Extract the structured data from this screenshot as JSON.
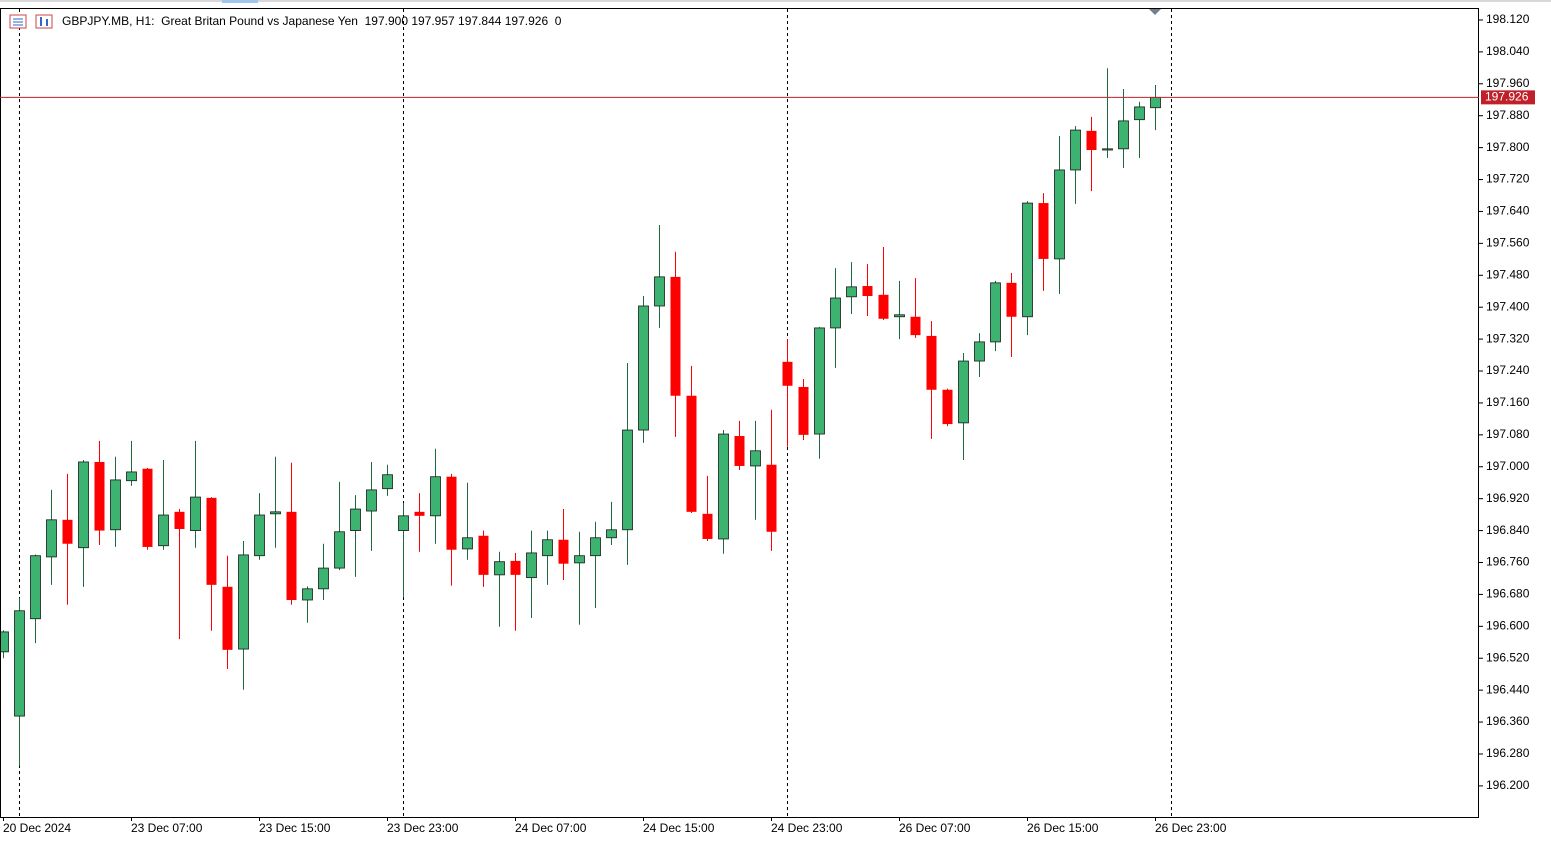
{
  "chart_data": {
    "type": "candlestick",
    "title": "GBPJPY.MB, H1:  Great Britan Pound vs Japanese Yen  197.900 197.957 197.844 197.926  0",
    "categories": [
      "20 Dec 2024",
      null,
      null,
      null,
      null,
      null,
      null,
      null,
      "23 Dec 07:00",
      null,
      null,
      null,
      null,
      null,
      null,
      null,
      "23 Dec 15:00",
      null,
      null,
      null,
      null,
      null,
      null,
      null,
      "23 Dec 23:00",
      null,
      null,
      null,
      null,
      null,
      null,
      null,
      "24 Dec 07:00",
      null,
      null,
      null,
      null,
      null,
      null,
      null,
      "24 Dec 15:00",
      null,
      null,
      null,
      null,
      null,
      null,
      null,
      "24 Dec 23:00",
      null,
      null,
      null,
      null,
      null,
      null,
      null,
      "26 Dec 07:00",
      null,
      null,
      null,
      null,
      null,
      null,
      null,
      "26 Dec 15:00",
      null,
      null,
      null,
      null,
      null,
      null,
      null,
      "26 Dec 23:00"
    ],
    "open": [
      196.536,
      196.375,
      196.619,
      196.774,
      196.867,
      196.797,
      197.012,
      196.842,
      196.965,
      196.995,
      196.802,
      196.887,
      196.84,
      196.922,
      196.699,
      196.543,
      196.777,
      196.882,
      196.887,
      196.666,
      196.694,
      196.746,
      196.84,
      196.889,
      196.945,
      196.84,
      196.887,
      196.877,
      196.975,
      196.794,
      196.827,
      196.729,
      196.764,
      196.722,
      196.777,
      196.817,
      196.759,
      196.777,
      196.822,
      196.842,
      197.092,
      197.403,
      197.476,
      197.178,
      196.882,
      196.819,
      197.077,
      197.002,
      197.005,
      197.263,
      197.2,
      197.082,
      197.348,
      197.426,
      197.453,
      197.431,
      197.376,
      197.376,
      197.328,
      197.193,
      197.11,
      197.265,
      197.313,
      197.461,
      197.376,
      197.661,
      197.521,
      197.744,
      197.842,
      197.794,
      197.797,
      197.87,
      197.9
    ],
    "high": [
      196.59,
      196.671,
      196.78,
      196.942,
      196.982,
      197.017,
      197.065,
      197.025,
      197.065,
      196.997,
      197.017,
      196.894,
      197.065,
      196.924,
      196.777,
      196.814,
      196.934,
      197.025,
      197.01,
      196.7,
      196.807,
      196.962,
      196.929,
      197.012,
      197.005,
      196.909,
      196.934,
      197.045,
      196.982,
      196.96,
      196.84,
      196.787,
      196.784,
      196.84,
      196.84,
      196.894,
      196.837,
      196.862,
      196.912,
      197.26,
      197.428,
      197.606,
      197.539,
      197.253,
      196.977,
      197.092,
      197.115,
      197.115,
      197.143,
      197.32,
      197.22,
      197.35,
      197.498,
      197.513,
      197.508,
      197.551,
      197.466,
      197.473,
      197.365,
      197.196,
      197.285,
      197.335,
      197.466,
      197.486,
      197.666,
      197.686,
      197.829,
      197.854,
      197.877,
      197.999,
      197.947,
      197.915,
      197.957
    ],
    "low": [
      196.52,
      196.25,
      196.558,
      196.704,
      196.654,
      196.699,
      196.804,
      196.799,
      196.952,
      196.792,
      196.792,
      196.568,
      196.797,
      196.589,
      196.493,
      196.441,
      196.767,
      196.797,
      196.654,
      196.609,
      196.666,
      196.741,
      196.724,
      196.789,
      196.927,
      196.674,
      196.787,
      196.807,
      196.702,
      196.767,
      196.699,
      196.599,
      196.589,
      196.621,
      196.704,
      196.716,
      196.604,
      196.646,
      196.804,
      196.754,
      197.06,
      197.348,
      197.075,
      196.884,
      196.814,
      196.782,
      196.992,
      196.867,
      196.789,
      197.05,
      197.067,
      197.02,
      197.248,
      197.383,
      197.378,
      197.368,
      197.32,
      197.323,
      197.07,
      197.102,
      197.017,
      197.225,
      197.29,
      197.275,
      197.33,
      197.441,
      197.433,
      197.659,
      197.691,
      197.774,
      197.749,
      197.774,
      197.844
    ],
    "close": [
      196.586,
      196.639,
      196.777,
      196.867,
      196.807,
      197.012,
      196.84,
      196.967,
      196.987,
      196.799,
      196.879,
      196.844,
      196.924,
      196.704,
      196.541,
      196.779,
      196.879,
      196.887,
      196.666,
      196.694,
      196.746,
      196.837,
      196.894,
      196.942,
      196.98,
      196.877,
      196.877,
      196.975,
      196.792,
      196.822,
      196.729,
      196.762,
      196.729,
      196.784,
      196.817,
      196.757,
      196.777,
      196.822,
      196.842,
      197.092,
      197.403,
      197.476,
      197.178,
      196.887,
      196.819,
      197.082,
      197.002,
      197.04,
      196.837,
      197.203,
      197.08,
      197.348,
      197.423,
      197.451,
      197.428,
      197.371,
      197.381,
      197.33,
      197.193,
      197.107,
      197.265,
      197.313,
      197.461,
      197.376,
      197.661,
      197.521,
      197.744,
      197.844,
      197.794,
      197.797,
      197.867,
      197.902,
      197.926
    ],
    "up_color": "#3cb371",
    "down_color": "#ff0000",
    "price_line": {
      "value": 197.926,
      "label": "197.926",
      "color": "#c0202a"
    },
    "ylim": [
      196.122,
      198.15
    ],
    "yticks": [
      {
        "value": 198.12,
        "label": "198.120"
      },
      {
        "value": 198.04,
        "label": "198.040"
      },
      {
        "value": 197.96,
        "label": "197.960"
      },
      {
        "value": 197.88,
        "label": "197.880"
      },
      {
        "value": 197.8,
        "label": "197.800"
      },
      {
        "value": 197.72,
        "label": "197.720"
      },
      {
        "value": 197.64,
        "label": "197.640"
      },
      {
        "value": 197.56,
        "label": "197.560"
      },
      {
        "value": 197.48,
        "label": "197.480"
      },
      {
        "value": 197.4,
        "label": "197.400"
      },
      {
        "value": 197.32,
        "label": "197.320"
      },
      {
        "value": 197.24,
        "label": "197.240"
      },
      {
        "value": 197.16,
        "label": "197.160"
      },
      {
        "value": 197.08,
        "label": "197.080"
      },
      {
        "value": 197,
        "label": "197.000"
      },
      {
        "value": 196.92,
        "label": "196.920"
      },
      {
        "value": 196.84,
        "label": "196.840"
      },
      {
        "value": 196.76,
        "label": "196.760"
      },
      {
        "value": 196.68,
        "label": "196.680"
      },
      {
        "value": 196.6,
        "label": "196.600"
      },
      {
        "value": 196.52,
        "label": "196.520"
      },
      {
        "value": 196.44,
        "label": "196.440"
      },
      {
        "value": 196.36,
        "label": "196.360"
      },
      {
        "value": 196.28,
        "label": "196.280"
      },
      {
        "value": 196.2,
        "label": "196.200"
      }
    ],
    "grid": false
  }
}
